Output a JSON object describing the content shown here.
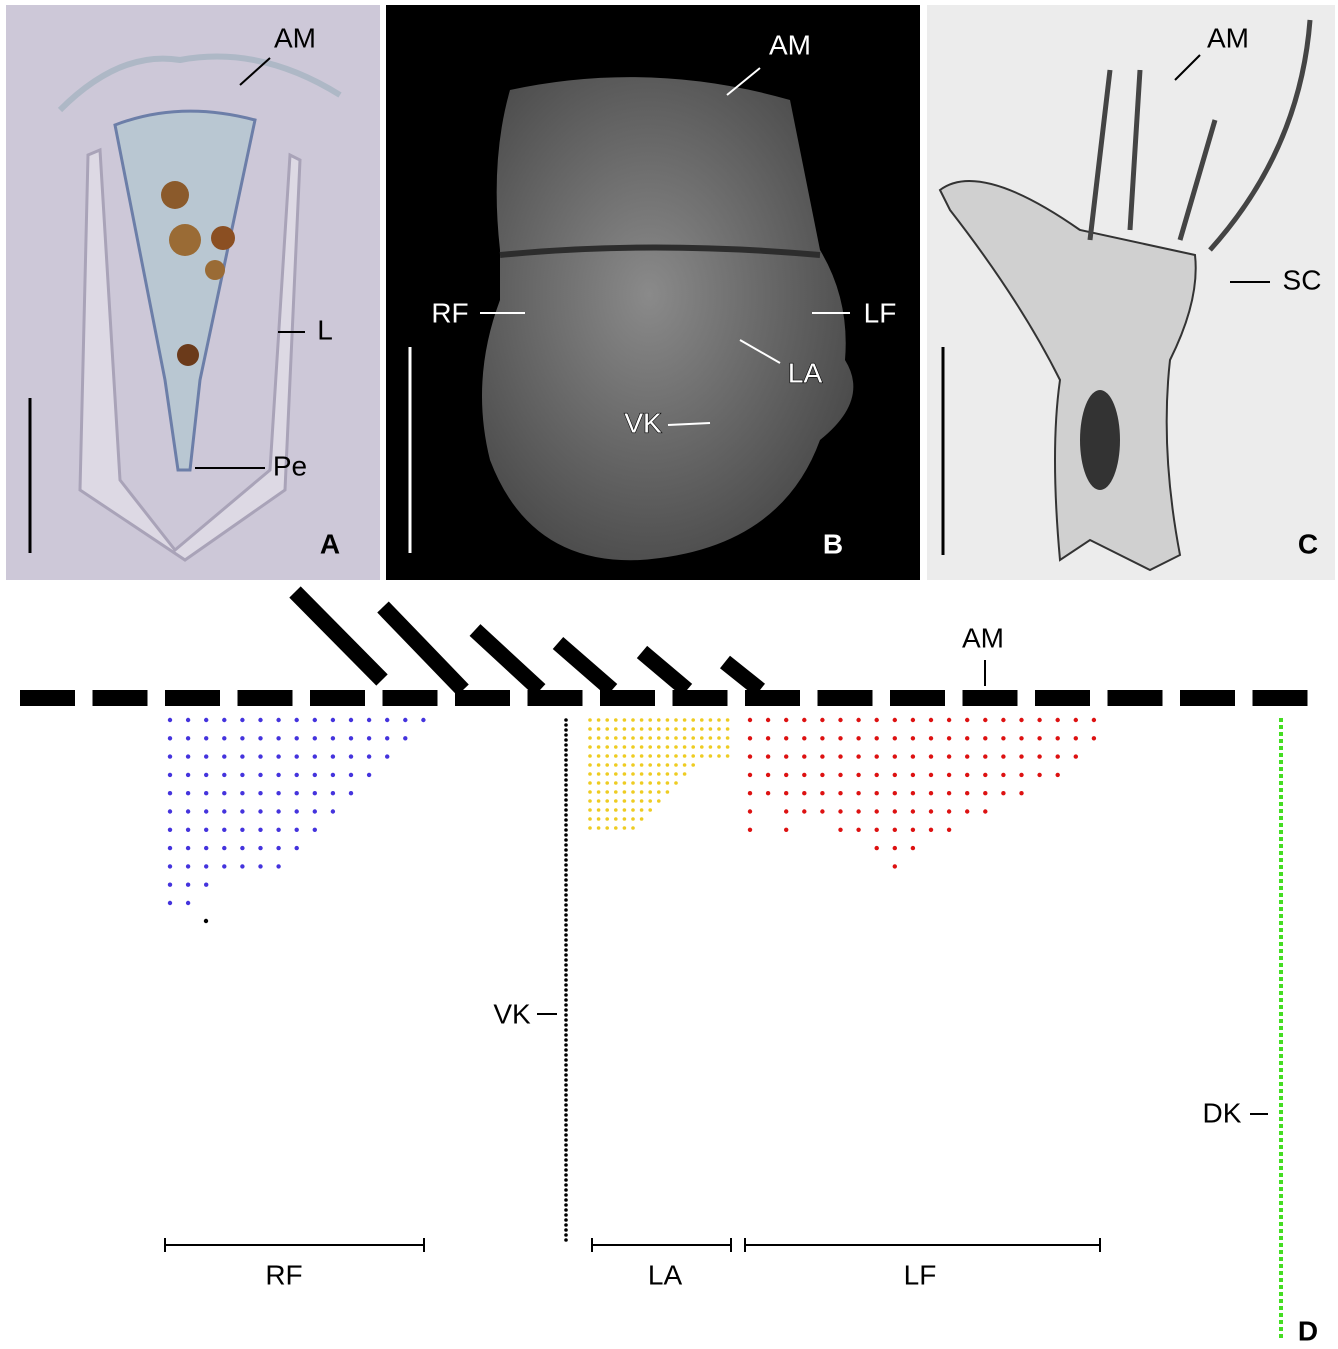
{
  "panels": [
    {
      "label": "A",
      "annotations": [
        "AM",
        "L",
        "Pe"
      ]
    },
    {
      "label": "B",
      "annotations": [
        "AM",
        "RF",
        "LF",
        "LA",
        "VK"
      ]
    },
    {
      "label": "C",
      "annotations": [
        "AM",
        "SC"
      ]
    },
    {
      "label": "D",
      "annotations": [
        "AM",
        "VK",
        "DK"
      ],
      "fields": [
        "RF",
        "LA",
        "LF"
      ]
    }
  ]
}
